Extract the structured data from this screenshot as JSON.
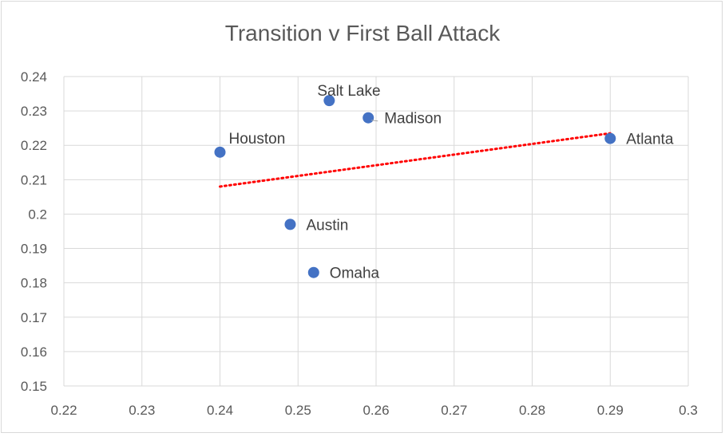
{
  "chart_data": {
    "type": "scatter",
    "title": "Transition v First Ball Attack",
    "xlabel": "",
    "ylabel": "",
    "xlim": [
      0.22,
      0.3
    ],
    "ylim": [
      0.15,
      0.24
    ],
    "x_ticks": [
      0.22,
      0.23,
      0.24,
      0.25,
      0.26,
      0.27,
      0.28,
      0.29,
      0.3
    ],
    "y_ticks": [
      0.15,
      0.16,
      0.17,
      0.18,
      0.19,
      0.2,
      0.21,
      0.22,
      0.23,
      0.24
    ],
    "grid": true,
    "legend": "none",
    "point_color": "#4472C4",
    "trendline": {
      "type": "linear",
      "style": "dotted",
      "color": "#FF0000",
      "x_range": [
        0.24,
        0.29
      ],
      "y_range": [
        0.208,
        0.2235
      ]
    },
    "points": [
      {
        "label": "Houston",
        "x": 0.24,
        "y": 0.218,
        "label_position": "above-right"
      },
      {
        "label": "Salt Lake",
        "x": 0.254,
        "y": 0.233,
        "label_position": "above"
      },
      {
        "label": "Madison",
        "x": 0.259,
        "y": 0.228,
        "label_position": "right"
      },
      {
        "label": "Atlanta",
        "x": 0.29,
        "y": 0.222,
        "label_position": "right"
      },
      {
        "label": "Austin",
        "x": 0.249,
        "y": 0.197,
        "label_position": "right"
      },
      {
        "label": "Omaha",
        "x": 0.252,
        "y": 0.183,
        "label_position": "right"
      }
    ]
  }
}
